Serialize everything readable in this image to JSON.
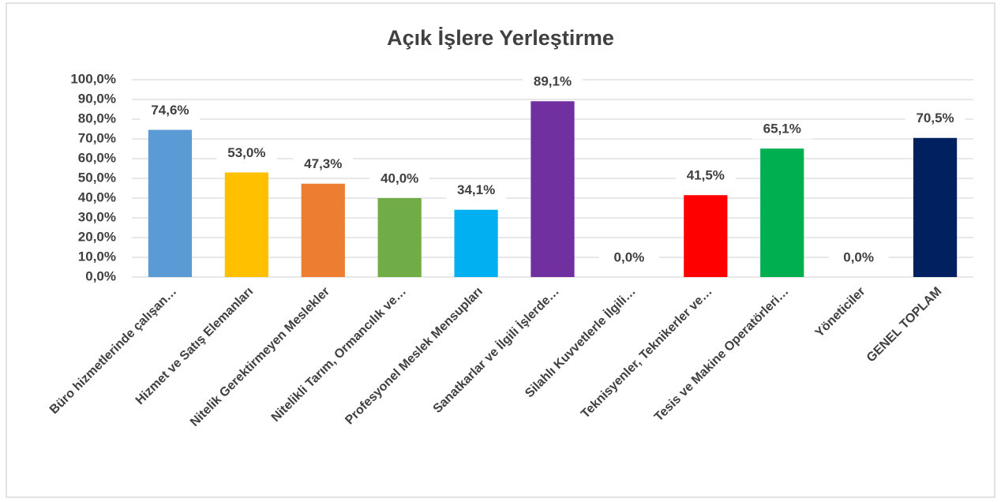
{
  "chart_data": {
    "type": "bar",
    "title": "Açık İşlere Yerleştirme",
    "categories": [
      "Büro hizmetlerinde çalışan…",
      "Hizmet ve Satış Elemanları",
      "Nitelik Gerektirmeyen Meslekler",
      "Nitelikli Tarım, Ormancılık ve…",
      "Profesyonel Meslek Mensupları",
      "Sanatkarlar ve İlgili İşlerde…",
      "Silahlı Kuvvetlerle İlgili…",
      "Teknisyenler, Teknikerler ve…",
      "Tesis ve Makine Operatörleri…",
      "Yöneticiler",
      "GENEL TOPLAM"
    ],
    "values": [
      74.6,
      53.0,
      47.3,
      40.0,
      34.1,
      89.1,
      0.0,
      41.5,
      65.1,
      0.0,
      70.5
    ],
    "value_labels": [
      "74,6%",
      "53,0%",
      "47,3%",
      "40,0%",
      "34,1%",
      "89,1%",
      "0,0%",
      "41,5%",
      "65,1%",
      "0,0%",
      "70,5%"
    ],
    "colors": [
      "#5b9bd5",
      "#ffc000",
      "#ed7d31",
      "#70ad47",
      "#00b0f0",
      "#7030a0",
      "#4472c4",
      "#ff0000",
      "#00b050",
      "#a5a5a5",
      "#002060"
    ],
    "ylim": [
      0,
      100
    ],
    "yticks": [
      {
        "value": 0,
        "label": "0,0%"
      },
      {
        "value": 10,
        "label": "10,0%"
      },
      {
        "value": 20,
        "label": "20,0%"
      },
      {
        "value": 30,
        "label": "30,0%"
      },
      {
        "value": 40,
        "label": "40,0%"
      },
      {
        "value": 50,
        "label": "50,0%"
      },
      {
        "value": 60,
        "label": "60,0%"
      },
      {
        "value": 70,
        "label": "70,0%"
      },
      {
        "value": 80,
        "label": "80,0%"
      },
      {
        "value": 90,
        "label": "90,0%"
      },
      {
        "value": 100,
        "label": "100,0%"
      }
    ],
    "grid": true
  }
}
